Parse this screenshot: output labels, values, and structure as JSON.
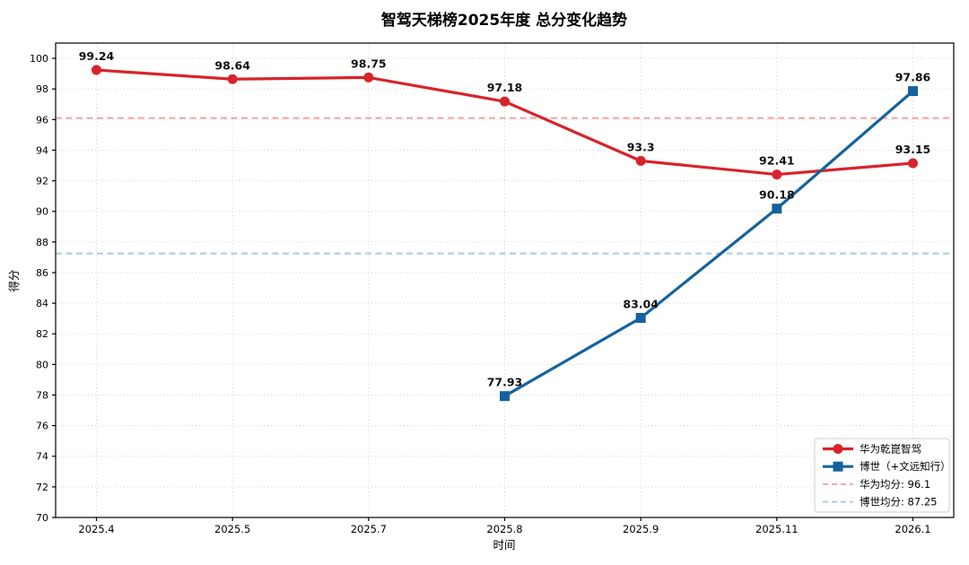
{
  "chart_data": {
    "type": "line",
    "title": "智驾天梯榜2025年度 总分变化趋势",
    "xlabel": "时间",
    "ylabel": "得分",
    "categories": [
      "2025.4",
      "2025.5",
      "2025.7",
      "2025.8",
      "2025.9",
      "2025.11",
      "2026.1"
    ],
    "ylim": [
      70,
      101
    ],
    "yticks": [
      70,
      72,
      74,
      76,
      78,
      80,
      82,
      84,
      86,
      88,
      90,
      92,
      94,
      96,
      98,
      100
    ],
    "grid": true,
    "legend_position": "lower right",
    "series": [
      {
        "name": "华为乾崑智驾",
        "marker": "circle",
        "color": "#d8232a",
        "x": [
          "2025.4",
          "2025.5",
          "2025.7",
          "2025.8",
          "2025.9",
          "2025.11",
          "2026.1"
        ],
        "values": [
          99.24,
          98.64,
          98.75,
          97.18,
          93.3,
          92.41,
          93.15
        ]
      },
      {
        "name": "博世（+文远知行）",
        "marker": "square",
        "color": "#14639e",
        "x": [
          "2025.8",
          "2025.9",
          "2025.11",
          "2026.1"
        ],
        "values": [
          77.93,
          83.04,
          90.18,
          97.86
        ]
      }
    ],
    "reference_lines": [
      {
        "name": "华为均分: 96.1",
        "value": 96.1,
        "color": "#f4a2a2"
      },
      {
        "name": "博世均分: 87.25",
        "value": 87.25,
        "color": "#a6cbe0"
      }
    ],
    "colors": {
      "grid": "#c9c9c9",
      "axis": "#000000",
      "legend_border": "#cccccc",
      "background": "#ffffff"
    }
  }
}
